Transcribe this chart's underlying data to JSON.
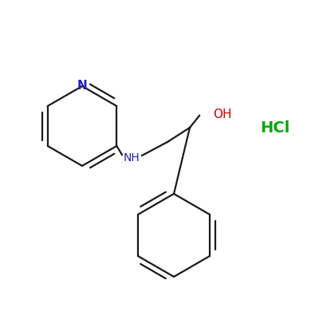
{
  "background_color": "#ffffff",
  "bond_color": "#1a1a1a",
  "N_color": "#2222bb",
  "O_color": "#cc0000",
  "HCl_color": "#00aa00",
  "HCl_text": "HCl",
  "OH_text": "OH",
  "N_text": "N",
  "NH_text": "NH",
  "figsize": [
    4.0,
    4.0
  ],
  "dpi": 100
}
